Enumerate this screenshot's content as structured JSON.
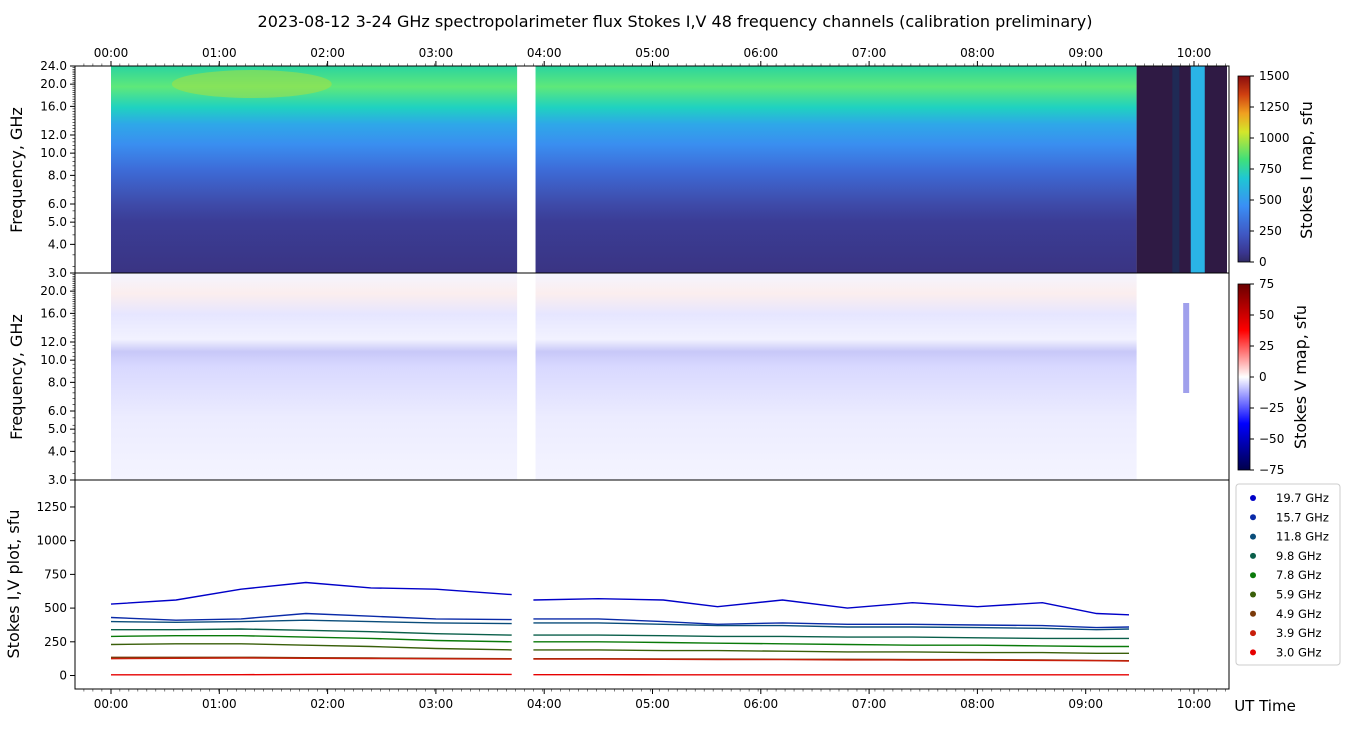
{
  "title": "2023-08-12     3-24 GHz spectropolarimeter flux   Stokes I,V   48 frequency channels   (calibration preliminary)",
  "colors": {
    "legend": [
      "#0000c8",
      "#0a2aa8",
      "#0a4d7a",
      "#0a5f4a",
      "#0a7a0a",
      "#3a5f0a",
      "#7a3a0a",
      "#c81e0a",
      "#e60000"
    ]
  },
  "chart_data": [
    {
      "type": "heatmap",
      "name": "Stokes I map",
      "ylabel": "Frequency, GHz",
      "colorbar_label": "Stokes I map, sfu",
      "colorbar_ticks": [
        0,
        250,
        500,
        750,
        1000,
        1250,
        1500
      ],
      "y_ticks": [
        "3.0",
        "4.0",
        "5.0",
        "6.0",
        "8.0",
        "10.0",
        "12.0",
        "16.0",
        "20.0",
        "24.0"
      ],
      "y_tick_values": [
        3,
        4,
        5,
        6,
        8,
        10,
        12,
        16,
        20,
        24
      ],
      "ylim": [
        3,
        24
      ],
      "x_ticks": [
        "00:00",
        "01:00",
        "02:00",
        "03:00",
        "04:00",
        "05:00",
        "06:00",
        "07:00",
        "08:00",
        "09:00",
        "10:00"
      ]
    },
    {
      "type": "heatmap",
      "name": "Stokes V map",
      "ylabel": "Frequency, GHz",
      "colorbar_label": "Stokes V map, sfu",
      "colorbar_ticks": [
        75,
        50,
        25,
        0,
        -25,
        -50,
        -75
      ],
      "colorbar_tick_labels": [
        "75",
        "50",
        "25",
        "0",
        "−25",
        "−50",
        "−75"
      ],
      "y_ticks": [
        "3.0",
        "4.0",
        "5.0",
        "6.0",
        "8.0",
        "10.0",
        "12.0",
        "16.0",
        "20.0"
      ],
      "y_tick_values": [
        3,
        4,
        5,
        6,
        8,
        10,
        12,
        16,
        20
      ],
      "ylim": [
        3,
        24
      ]
    },
    {
      "type": "line",
      "name": "Stokes I,V plot",
      "ylabel": "Stokes I,V plot, sfu",
      "xlabel": "UT Time",
      "y_ticks": [
        0,
        250,
        500,
        750,
        1000,
        1250
      ],
      "ylim": [
        -100,
        1450
      ],
      "x_ticks": [
        "00:00",
        "01:00",
        "02:00",
        "03:00",
        "04:00",
        "05:00",
        "06:00",
        "07:00",
        "08:00",
        "09:00",
        "10:00"
      ],
      "legend": [
        "19.7 GHz",
        "15.7 GHz",
        "11.8 GHz",
        "9.8 GHz",
        "7.8 GHz",
        "5.9 GHz",
        "4.9 GHz",
        "3.9 GHz",
        "3.0 GHz"
      ],
      "series": [
        {
          "name": "19.7 GHz",
          "values": [
            530,
            560,
            640,
            690,
            650,
            640,
            600,
            560,
            570,
            560,
            510,
            560,
            500,
            540,
            510,
            540,
            460,
            450
          ]
        },
        {
          "name": "15.7 GHz",
          "values": [
            430,
            410,
            420,
            460,
            440,
            420,
            415,
            420,
            420,
            400,
            380,
            390,
            380,
            380,
            375,
            370,
            355,
            360
          ]
        },
        {
          "name": "11.8 GHz",
          "values": [
            400,
            395,
            400,
            410,
            400,
            390,
            385,
            390,
            390,
            380,
            370,
            370,
            360,
            360,
            355,
            350,
            340,
            345
          ]
        },
        {
          "name": "9.8 GHz",
          "values": [
            340,
            340,
            345,
            335,
            325,
            310,
            300,
            300,
            300,
            295,
            290,
            290,
            285,
            285,
            280,
            275,
            275,
            275
          ]
        },
        {
          "name": "7.8 GHz",
          "values": [
            290,
            295,
            295,
            285,
            275,
            260,
            250,
            250,
            250,
            245,
            240,
            235,
            230,
            225,
            225,
            220,
            215,
            215
          ]
        },
        {
          "name": "5.9 GHz",
          "values": [
            230,
            235,
            235,
            225,
            215,
            200,
            190,
            190,
            190,
            185,
            185,
            180,
            175,
            175,
            170,
            170,
            165,
            165
          ]
        },
        {
          "name": "4.9 GHz",
          "values": [
            135,
            135,
            135,
            132,
            130,
            128,
            125,
            125,
            125,
            123,
            122,
            120,
            120,
            118,
            118,
            115,
            112,
            110
          ]
        },
        {
          "name": "3.9 GHz",
          "values": [
            125,
            128,
            130,
            128,
            126,
            124,
            122,
            122,
            122,
            120,
            118,
            118,
            116,
            115,
            114,
            112,
            110,
            108
          ]
        },
        {
          "name": "3.0 GHz",
          "values": [
            5,
            5,
            6,
            8,
            10,
            10,
            8,
            6,
            6,
            5,
            5,
            5,
            5,
            5,
            5,
            5,
            5,
            5
          ]
        }
      ],
      "time_hours": [
        0,
        0.6,
        1.2,
        1.8,
        2.4,
        3.0,
        3.7,
        3.9,
        4.5,
        5.1,
        5.6,
        6.2,
        6.8,
        7.4,
        8.0,
        8.6,
        9.1,
        9.4
      ]
    }
  ]
}
